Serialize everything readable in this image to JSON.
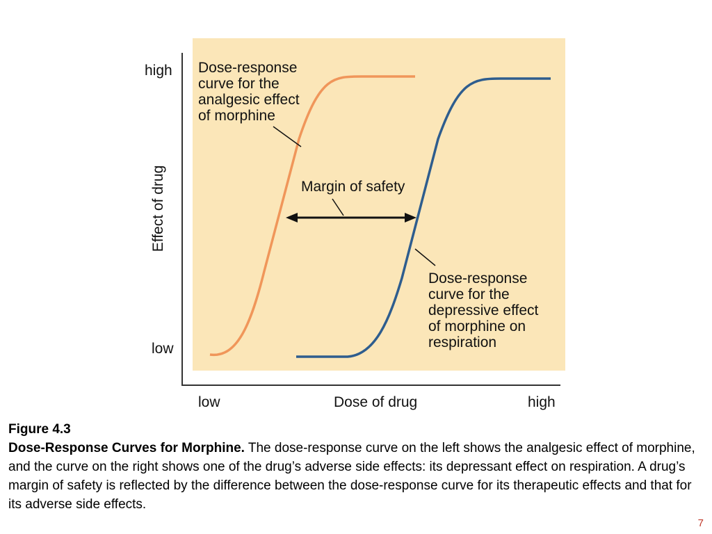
{
  "figure": {
    "y_axis_label": "Effect of drug",
    "y_high": "high",
    "y_low": "low",
    "x_axis_label": "Dose of drug",
    "x_low": "low",
    "x_high": "high",
    "analgesic_label": [
      "Dose-response",
      "curve for the",
      "analgesic effect",
      "of morphine"
    ],
    "margin_label": "Margin of safety",
    "depressive_label": [
      "Dose-response",
      "curve for the",
      "depressive effect",
      "of morphine on",
      "respiration"
    ],
    "colors": {
      "panel": "#fbe6b8",
      "analgesic_curve": "#f0965a",
      "depressive_curve": "#2e5d8e",
      "axis": "#333333"
    }
  },
  "caption": {
    "figure_number": "Figure 4.3",
    "title": "Dose-Response Curves for Morphine.",
    "body": " The dose-response curve on the left shows the analgesic effect of morphine, and the curve on the right shows one of the drug’s adverse side effects: its depressant effect on respiration.   A drug’s margin of safety is reflected by the difference between the dose-response curve for its therapeutic effects and that for its adverse side effects."
  },
  "page_number": "7"
}
